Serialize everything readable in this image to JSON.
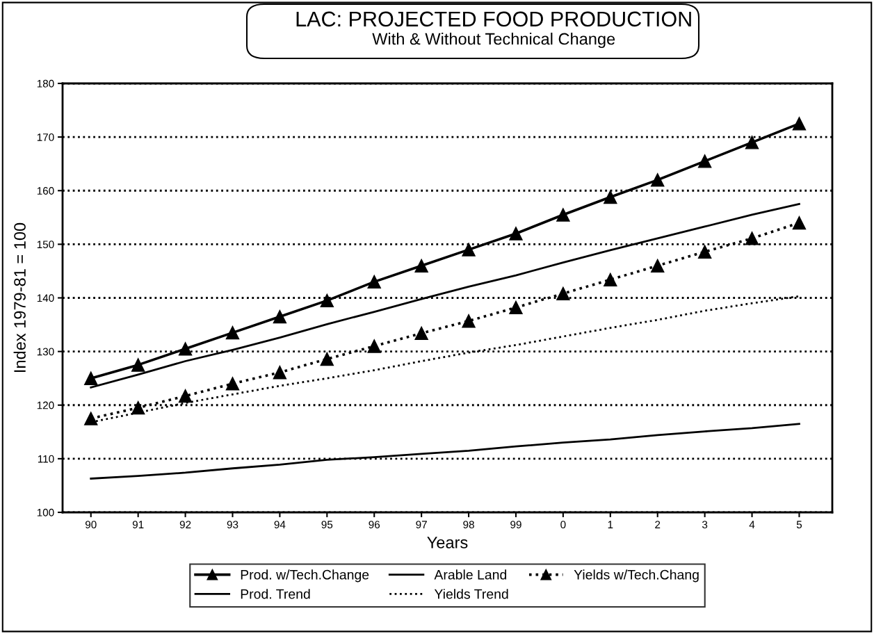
{
  "chart_data": {
    "type": "line",
    "title": "LAC: PROJECTED FOOD PRODUCTION",
    "subtitle": "With & Without Technical Change",
    "xlabel": "Years",
    "ylabel": "Index 1979-81 = 100",
    "categories": [
      "90",
      "91",
      "92",
      "93",
      "94",
      "95",
      "96",
      "97",
      "98",
      "99",
      "0",
      "1",
      "2",
      "3",
      "4",
      "5"
    ],
    "ylim": [
      100,
      180
    ],
    "yticks": [
      100,
      110,
      120,
      130,
      140,
      150,
      160,
      170,
      180
    ],
    "grid": "y",
    "legend": "bottom",
    "series": [
      {
        "name": "Prod. w/Tech.Change",
        "color": "#000000",
        "marker": "triangle",
        "line_style": "solid",
        "values": [
          125,
          127.5,
          130.5,
          133.5,
          136.5,
          139.5,
          143,
          146,
          149,
          152,
          155.5,
          158.8,
          162,
          165.5,
          169,
          172.5
        ]
      },
      {
        "name": "Arable Land",
        "color": "#000000",
        "marker": "none",
        "line_style": "solid",
        "values": [
          106.3,
          106.8,
          107.4,
          108.2,
          108.9,
          109.8,
          110.3,
          110.9,
          111.5,
          112.3,
          113.0,
          113.6,
          114.4,
          115.1,
          115.7,
          116.5
        ]
      },
      {
        "name": "Yields w/Tech.Chang",
        "color": "#000000",
        "marker": "triangle",
        "line_style": "dotted",
        "values": [
          117.5,
          119.5,
          121.7,
          124,
          126.1,
          128.6,
          131,
          133.4,
          135.7,
          138.2,
          140.8,
          143.4,
          146,
          148.6,
          151.1,
          154
        ]
      },
      {
        "name": "Prod. Trend",
        "color": "#000000",
        "marker": "none",
        "line_style": "solid",
        "values": [
          123.3,
          125.7,
          128.2,
          130.3,
          132.6,
          135.1,
          137.4,
          139.8,
          142.1,
          144.2,
          146.6,
          148.9,
          151.1,
          153.3,
          155.5,
          157.5
        ]
      },
      {
        "name": "Yields Trend",
        "color": "#000000",
        "marker": "none",
        "line_style": "dotted",
        "values": [
          116.8,
          118.6,
          120.4,
          122.0,
          123.6,
          125.0,
          126.5,
          128.2,
          129.8,
          131.2,
          132.8,
          134.4,
          135.9,
          137.6,
          139.0,
          140.3
        ]
      }
    ]
  }
}
